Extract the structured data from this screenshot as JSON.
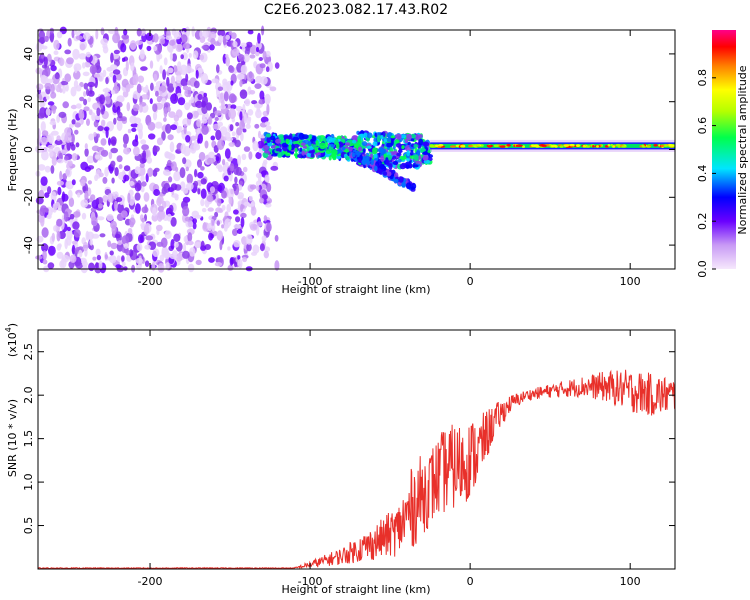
{
  "title": "C2E6.2023.082.17.43.R02",
  "chart_data": [
    {
      "type": "heatmap",
      "xlabel": "Height of straight line (km)",
      "ylabel": "Frequency (Hz)",
      "xlim": [
        -270,
        128
      ],
      "ylim": [
        -50,
        50
      ],
      "x_ticks": [
        -200,
        -100,
        0,
        100
      ],
      "y_ticks": [
        -40,
        -20,
        0,
        20,
        40
      ],
      "colorbar": {
        "label": "Normalized spectral amplitude",
        "range": [
          0,
          1
        ],
        "ticks": [
          "0.0",
          "0.2",
          "0.4",
          "0.6",
          "0.8"
        ],
        "tick_values": [
          0.0,
          0.2,
          0.4,
          0.6,
          0.8
        ],
        "colors": [
          "#f3d8fb",
          "#7a00ff",
          "#0000ff",
          "#00e5ff",
          "#00ff66",
          "#a8ff00",
          "#ffff00",
          "#ff8000",
          "#ff0000",
          "#ff0080"
        ]
      },
      "regions": [
        {
          "description_key": "noise",
          "x_range": [
            -270,
            -128
          ],
          "freq_range": [
            -50,
            50
          ],
          "amplitude": 0.1
        },
        {
          "description_key": "band",
          "x_range": [
            -128,
            -25
          ],
          "freq_range": [
            -3,
            6
          ],
          "amplitude": 0.4
        },
        {
          "description_key": "branch",
          "x_range": [
            -75,
            -35
          ],
          "freq_start": -1,
          "freq_end": -16,
          "amplitude": 0.35
        },
        {
          "description_key": "signal",
          "x_range": [
            -25,
            128
          ],
          "freq_center": 1.5,
          "amplitude": 0.9
        }
      ]
    },
    {
      "type": "line",
      "xlabel": "Height of straight line (km)",
      "ylabel": "SNR (10 * v/v)",
      "y_multiplier": "(x10",
      "y_multiplier_exp": "4",
      "xlim": [
        -270,
        128
      ],
      "ylim": [
        0,
        2.75
      ],
      "x_ticks": [
        -200,
        -100,
        0,
        100
      ],
      "y_ticks": [
        0.5,
        1.0,
        1.5,
        2.0,
        2.5
      ],
      "y_tick_labels": [
        "0.5",
        "1.0",
        "1.5",
        "2.0",
        "2.5"
      ],
      "series": [
        {
          "color": "#e8302a",
          "anchors_x": [
            -270,
            -110,
            -100,
            -80,
            -60,
            -45,
            -35,
            -25,
            -15,
            -5,
            5,
            15,
            25,
            35,
            50,
            70,
            85,
            100,
            115,
            128
          ],
          "anchors_y": [
            0.01,
            0.01,
            0.05,
            0.15,
            0.3,
            0.45,
            0.75,
            0.95,
            1.15,
            1.2,
            1.35,
            1.7,
            1.9,
            2.0,
            2.05,
            2.1,
            2.1,
            2.05,
            2.0,
            2.0
          ],
          "noise_amp": [
            0.005,
            0.005,
            0.04,
            0.1,
            0.2,
            0.3,
            0.5,
            0.45,
            0.5,
            0.5,
            0.4,
            0.2,
            0.1,
            0.06,
            0.08,
            0.12,
            0.18,
            0.25,
            0.25,
            0.2
          ]
        }
      ]
    }
  ]
}
